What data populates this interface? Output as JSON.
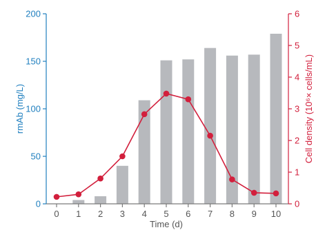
{
  "colors": {
    "left_axis": "#1f7fbf",
    "right_axis": "#d21f3c",
    "bar": "#b7b9bd",
    "line": "#d21f3c",
    "x_axis": "#7a7a7a"
  },
  "chart_data": {
    "type": "bar",
    "title": "",
    "xlabel": "Time (d)",
    "ylabel": "rmAb (mg/L)",
    "y2label": "Cell density (10⁶× cells/mL)",
    "categories": [
      0,
      1,
      2,
      3,
      4,
      5,
      6,
      7,
      8,
      9,
      10
    ],
    "ylim": [
      0,
      200
    ],
    "y_ticks": [
      0,
      50,
      100,
      150,
      200
    ],
    "y2lim": [
      0,
      6
    ],
    "y2_ticks": [
      0,
      1,
      2,
      3,
      4,
      5,
      6
    ],
    "grid": false,
    "legend": "none",
    "series": [
      {
        "kind": "bar",
        "axis": "left",
        "values": [
          0,
          4,
          8,
          40,
          109,
          151,
          152,
          164,
          156,
          157,
          179
        ]
      },
      {
        "kind": "line",
        "axis": "right",
        "markers": true,
        "values": [
          0.22,
          0.3,
          0.8,
          1.5,
          2.83,
          3.48,
          3.3,
          2.15,
          0.77,
          0.35,
          0.33
        ]
      }
    ]
  }
}
